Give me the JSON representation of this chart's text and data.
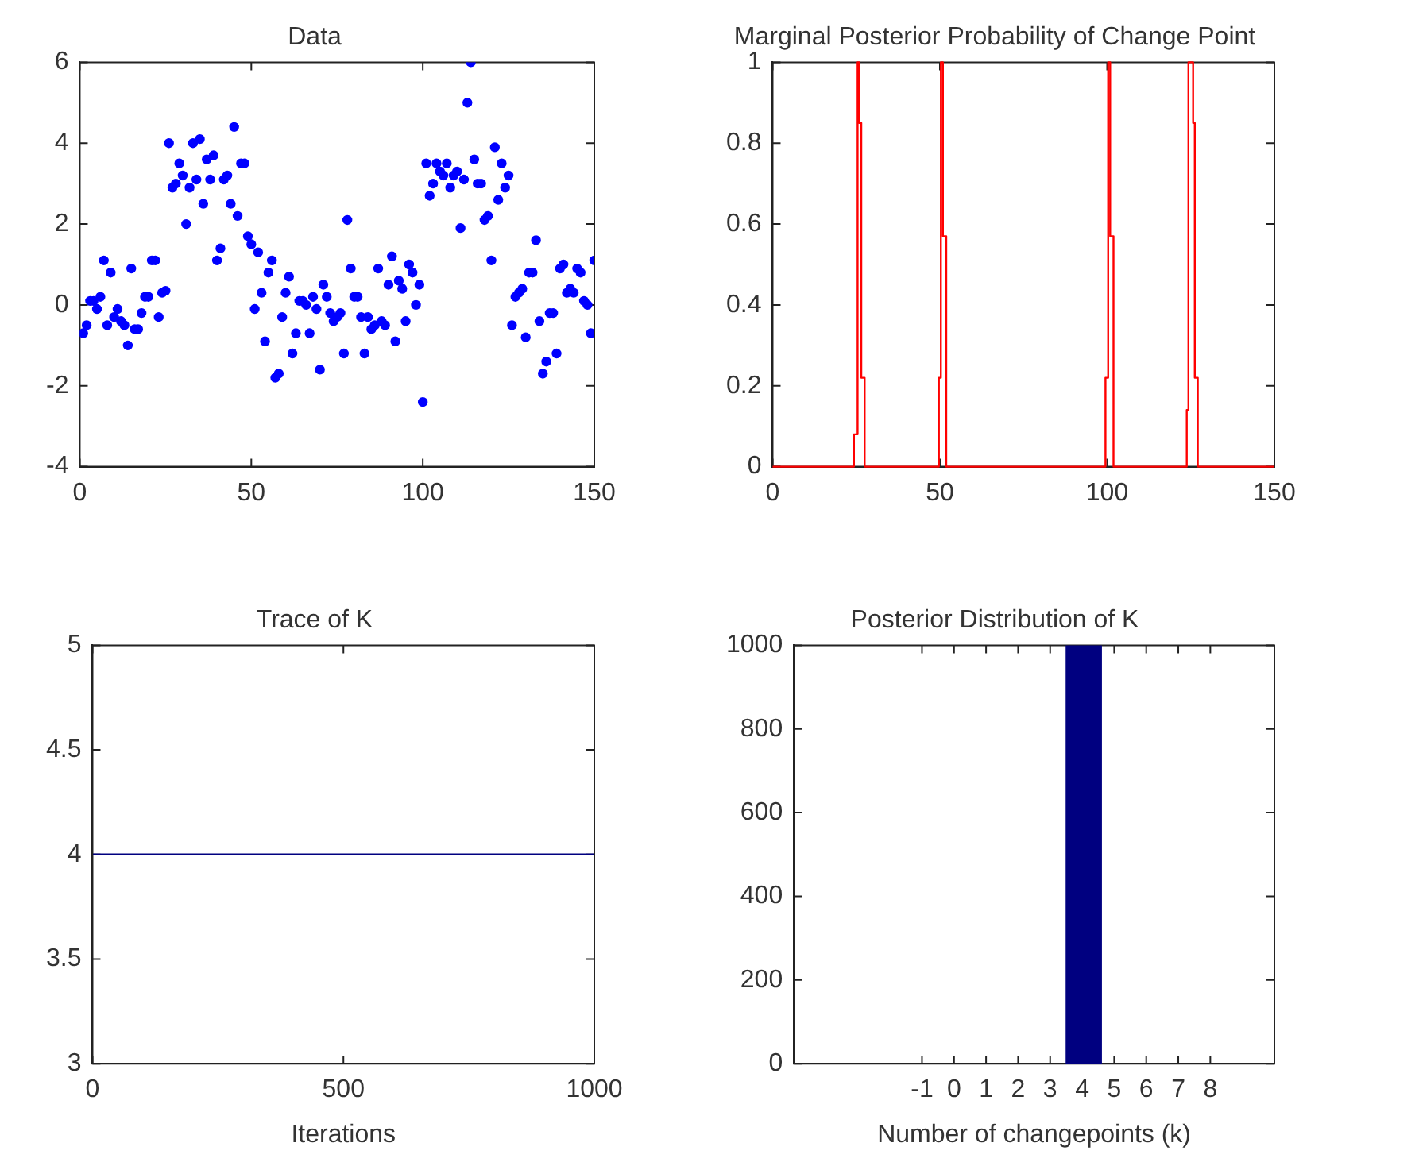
{
  "chart_data": [
    {
      "type": "scatter",
      "title": "Data",
      "marker": "circle",
      "xlim": [
        0,
        150
      ],
      "xticks": [
        0,
        50,
        100,
        150
      ],
      "ylim": [
        -4,
        6
      ],
      "yticks": [
        -4,
        -2,
        0,
        2,
        4,
        6
      ],
      "grid": false,
      "legend": false,
      "x": [
        1,
        2,
        3,
        4,
        5,
        6,
        7,
        8,
        9,
        10,
        11,
        12,
        13,
        14,
        15,
        16,
        17,
        18,
        19,
        20,
        21,
        22,
        23,
        24,
        25,
        26,
        27,
        28,
        29,
        30,
        31,
        32,
        33,
        34,
        35,
        36,
        37,
        38,
        39,
        40,
        41,
        42,
        43,
        44,
        45,
        46,
        47,
        48,
        49,
        50,
        51,
        52,
        53,
        54,
        55,
        56,
        57,
        58,
        59,
        60,
        61,
        62,
        63,
        64,
        65,
        66,
        67,
        68,
        69,
        70,
        71,
        72,
        73,
        74,
        75,
        76,
        77,
        78,
        79,
        80,
        81,
        82,
        83,
        84,
        85,
        86,
        87,
        88,
        89,
        90,
        91,
        92,
        93,
        94,
        95,
        96,
        97,
        98,
        99,
        100,
        101,
        102,
        103,
        104,
        105,
        106,
        107,
        108,
        109,
        110,
        111,
        112,
        113,
        114,
        115,
        116,
        117,
        118,
        119,
        120,
        121,
        122,
        123,
        124,
        125,
        126,
        127,
        128,
        129,
        130,
        131,
        132,
        133,
        134,
        135,
        136,
        137,
        138,
        139,
        140,
        141,
        142,
        143,
        144,
        145,
        146,
        147,
        148,
        149,
        150
      ],
      "series": [
        {
          "color": "#0000ff",
          "values": [
            -0.7,
            -0.5,
            0.1,
            0.1,
            -0.1,
            0.2,
            1.1,
            -0.5,
            0.8,
            -0.3,
            -0.1,
            -0.4,
            -0.5,
            -1.0,
            0.9,
            -0.6,
            -0.6,
            -0.2,
            0.2,
            0.2,
            1.1,
            1.1,
            -0.3,
            0.3,
            0.35,
            4.0,
            2.9,
            3.0,
            3.5,
            3.2,
            2.0,
            2.9,
            4.0,
            3.1,
            4.1,
            2.5,
            3.6,
            3.1,
            3.7,
            1.1,
            1.4,
            3.1,
            3.2,
            2.5,
            4.4,
            2.2,
            3.5,
            3.5,
            1.7,
            1.5,
            -0.1,
            1.3,
            0.3,
            -0.9,
            0.8,
            1.1,
            -1.8,
            -1.7,
            -0.3,
            0.3,
            0.7,
            -1.2,
            -0.7,
            0.1,
            0.1,
            0.0,
            -0.7,
            0.2,
            -0.1,
            -1.6,
            0.5,
            0.2,
            -0.2,
            -0.4,
            -0.3,
            -0.2,
            -1.2,
            2.1,
            0.9,
            0.2,
            0.2,
            -0.3,
            -1.2,
            -0.3,
            -0.6,
            -0.5,
            0.9,
            -0.4,
            -0.5,
            0.5,
            1.2,
            -0.9,
            0.6,
            0.4,
            -0.4,
            1.0,
            0.8,
            0.0,
            0.5,
            -2.4,
            3.5,
            2.7,
            3.0,
            3.5,
            3.3,
            3.2,
            3.5,
            2.9,
            3.2,
            3.3,
            1.9,
            3.1,
            5.0,
            6.0,
            3.6,
            3.0,
            3.0,
            2.1,
            2.2,
            1.1,
            3.9,
            2.6,
            3.5,
            2.9,
            3.2,
            -0.5,
            0.2,
            0.3,
            0.4,
            -0.8,
            0.8,
            0.8,
            1.6,
            -0.4,
            -1.7,
            -1.4,
            -0.2,
            -0.2,
            -1.2,
            0.9,
            1.0,
            0.3,
            0.4,
            0.3,
            0.9,
            0.8,
            0.1,
            0.0,
            -0.7,
            1.1
          ]
        }
      ]
    },
    {
      "type": "step",
      "title": "Marginal Posterior Probability of Change Point",
      "xlim": [
        0,
        150
      ],
      "xticks": [
        0,
        50,
        100,
        150
      ],
      "ylim": [
        0,
        1
      ],
      "yticks": [
        0,
        0.2,
        0.4,
        0.6,
        0.8,
        1
      ],
      "grid": false,
      "legend": false,
      "x": [
        0,
        24.3,
        25.4,
        25.9,
        26.5,
        27.5,
        49.7,
        50.3,
        50.9,
        51.9,
        99.5,
        100.3,
        100.9,
        101.9,
        123.8,
        124.3,
        125.7,
        126.2,
        127.1,
        150
      ],
      "series": [
        {
          "color": "#ff0000",
          "values": [
            0,
            0.08,
            1,
            0.85,
            0.22,
            0,
            0.22,
            1,
            0.57,
            0,
            0.22,
            1,
            0.57,
            0,
            0.14,
            1,
            0.85,
            0.22,
            0,
            0
          ]
        }
      ]
    },
    {
      "type": "line",
      "title": "Trace of K",
      "xlabel": "Iterations",
      "xlim": [
        0,
        1000
      ],
      "xticks": [
        0,
        500,
        1000
      ],
      "ylim": [
        3,
        5
      ],
      "yticks": [
        3,
        3.5,
        4,
        4.5,
        5
      ],
      "grid": false,
      "legend": false,
      "x": [
        1,
        1000
      ],
      "series": [
        {
          "color": "#000080",
          "values": [
            4,
            4
          ]
        }
      ]
    },
    {
      "type": "histogram",
      "title": "Posterior Distribution of K",
      "xlabel": "Number of changepoints (k)",
      "xlim": [
        -5,
        10
      ],
      "xticks": [
        -1,
        0,
        1,
        2,
        3,
        4,
        5,
        6,
        7,
        8
      ],
      "ylim": [
        0,
        1000
      ],
      "yticks": [
        0,
        200,
        400,
        600,
        800,
        1000
      ],
      "grid": false,
      "legend": false,
      "bins": [
        3.5,
        4.6
      ],
      "values": [
        1000
      ],
      "color": "#000080"
    }
  ]
}
